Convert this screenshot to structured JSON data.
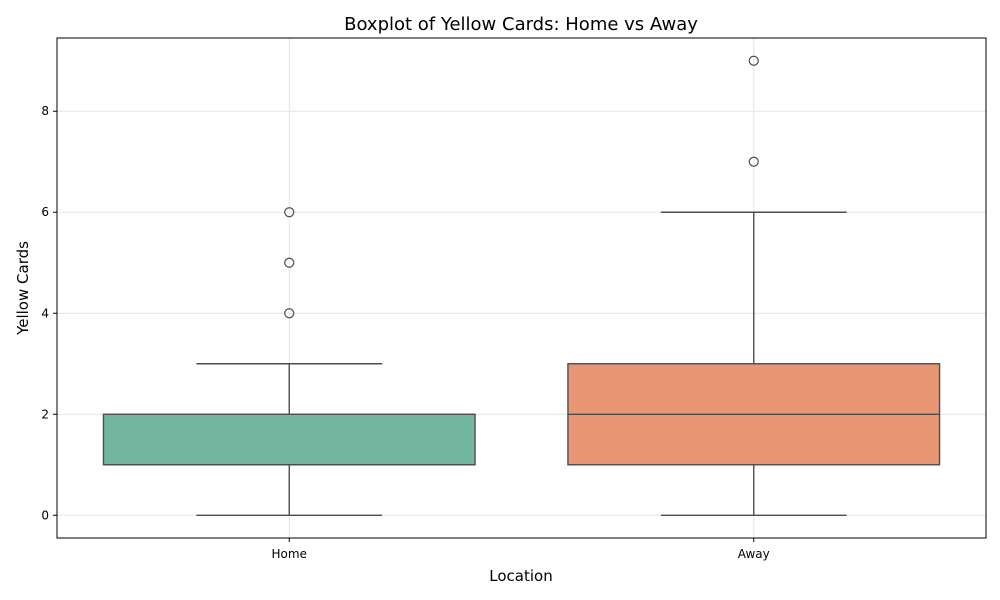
{
  "chart_data": {
    "type": "boxplot",
    "title": "Boxplot of Yellow Cards: Home vs Away",
    "xlabel": "Location",
    "ylabel": "Yellow Cards",
    "ylim": [
      -0.45,
      9.45
    ],
    "yticks": [
      0,
      2,
      4,
      6,
      8
    ],
    "grid": true,
    "categories": [
      "Home",
      "Away"
    ],
    "boxes": [
      {
        "category": "Home",
        "color": "#73b6a0",
        "whisker_low": 0,
        "q1": 1,
        "median": 1,
        "q3": 2,
        "whisker_high": 3,
        "outliers": [
          4,
          5,
          6
        ]
      },
      {
        "category": "Away",
        "color": "#e99675",
        "whisker_low": 0,
        "q1": 1,
        "median": 2,
        "q3": 3,
        "whisker_high": 6,
        "outliers": [
          7,
          9
        ]
      }
    ]
  }
}
